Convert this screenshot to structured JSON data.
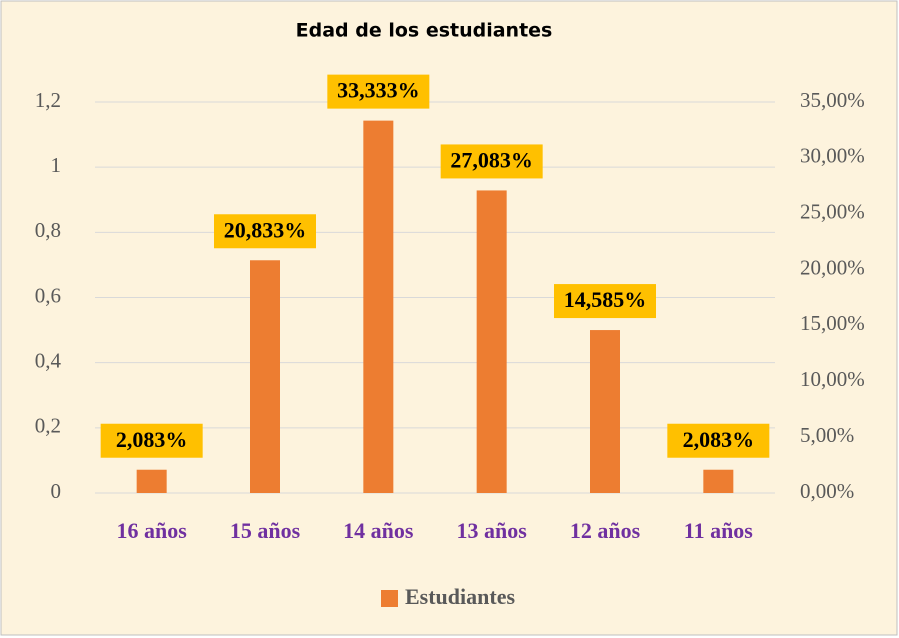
{
  "chart_data": {
    "type": "bar",
    "title": "Edad de los estudiantes",
    "categories": [
      "16 años",
      "15 años",
      "14 años",
      "13 años",
      "12 años",
      "11 años"
    ],
    "series": [
      {
        "name": "Estudiantes",
        "color": "#ed7d31",
        "axis": "y2",
        "values": [
          2.083,
          20.833,
          33.333,
          27.083,
          14.585,
          2.083
        ],
        "value_labels": [
          "2,083%",
          "20,833%",
          "33,333%",
          "27,083%",
          "14,585%",
          "2,083%"
        ]
      }
    ],
    "ylim": [
      0,
      1.2
    ],
    "yticks": [
      0,
      {
        "value": 0.2,
        "label": "0,2"
      },
      {
        "value": 0.4,
        "label": "0,4"
      },
      {
        "value": 0.6,
        "label": "0,6"
      },
      {
        "value": 0.8,
        "label": "0,8"
      },
      1,
      {
        "value": 1.2,
        "label": "1,2"
      }
    ],
    "y2lim": [
      0,
      35
    ],
    "y2ticks": [
      {
        "value": 0,
        "label": "0,00%"
      },
      {
        "value": 5,
        "label": "5,00%"
      },
      {
        "value": 10,
        "label": "10,00%"
      },
      {
        "value": 15,
        "label": "15,00%"
      },
      {
        "value": 20,
        "label": "20,00%"
      },
      {
        "value": 25,
        "label": "25,00%"
      },
      {
        "value": 30,
        "label": "30,00%"
      },
      {
        "value": 35,
        "label": "35,00%"
      }
    ],
    "grid": true,
    "legend": "bottom",
    "label_color": "#ffc000"
  }
}
